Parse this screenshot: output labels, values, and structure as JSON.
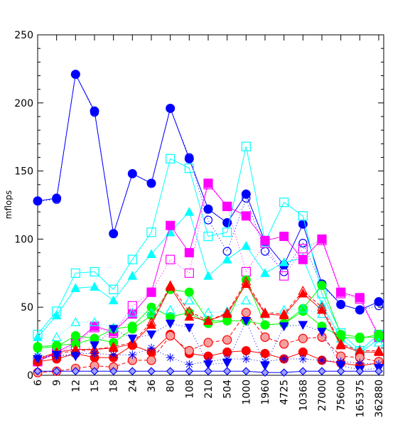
{
  "chart_data": {
    "type": "line",
    "title": "",
    "xlabel": "",
    "ylabel": "mflops",
    "ylim": [
      0,
      250
    ],
    "yticks": [
      "0",
      "50",
      "100",
      "150",
      "200",
      "250"
    ],
    "categories": [
      "6",
      "9",
      "12",
      "15",
      "18",
      "24",
      "36",
      "80",
      "108",
      "210",
      "504",
      "1000",
      "1960",
      "4725",
      "10368",
      "27000",
      "75600",
      "165375",
      "362880"
    ],
    "grid": false,
    "series": [
      {
        "color": "#0000ff",
        "style": "solid",
        "marker": "circle-filled",
        "values": [
          128,
          130,
          221,
          194,
          104,
          148,
          141,
          196,
          159,
          122,
          112,
          133,
          98,
          81,
          111,
          67,
          52,
          48,
          54
        ]
      },
      {
        "color": "#0000ff",
        "style": "dotted",
        "marker": "circle-open",
        "values": [
          128,
          129,
          221,
          193,
          104,
          148,
          141,
          196,
          160,
          114,
          91,
          130,
          91,
          76,
          97,
          66,
          52,
          48,
          51
        ]
      },
      {
        "color": "#00ffff",
        "style": "solid",
        "marker": "square-open",
        "values": [
          30,
          47,
          75,
          76,
          63,
          85,
          105,
          159,
          152,
          102,
          105,
          168,
          98,
          127,
          117,
          60,
          31,
          18,
          30
        ]
      },
      {
        "color": "#00ffff",
        "style": "solid",
        "marker": "triangle-filled",
        "values": [
          28,
          44,
          64,
          65,
          55,
          73,
          89,
          105,
          120,
          73,
          85,
          95,
          75,
          83,
          86,
          52,
          27,
          16,
          27
        ]
      },
      {
        "color": "#ff00ff",
        "style": "solid",
        "marker": "square-filled",
        "values": [
          10,
          17,
          24,
          36,
          32,
          45,
          61,
          110,
          90,
          141,
          124,
          117,
          99,
          102,
          85,
          100,
          61,
          57,
          29
        ]
      },
      {
        "color": "#ff00ff",
        "style": "dotted",
        "marker": "square-open",
        "values": [
          10,
          16,
          22,
          35,
          31,
          51,
          61,
          85,
          75,
          140,
          124,
          76,
          97,
          73,
          93,
          99,
          60,
          56,
          28
        ]
      },
      {
        "color": "#00ff00",
        "style": "solid",
        "marker": "circle-filled",
        "values": [
          20,
          21,
          29,
          27,
          24,
          34,
          44,
          63,
          61,
          40,
          40,
          70,
          37,
          38,
          47,
          36,
          28,
          27,
          30
        ]
      },
      {
        "color": "#00ff00",
        "style": "solid",
        "marker": "circle-filled",
        "values": [
          21,
          22,
          23,
          27,
          34,
          36,
          50,
          43,
          46,
          38,
          40,
          40,
          37,
          38,
          49,
          66,
          30,
          28,
          28
        ]
      },
      {
        "color": "#00ffff",
        "style": "dotted",
        "marker": "triangle-open",
        "values": [
          14,
          28,
          39,
          39,
          35,
          46,
          46,
          48,
          55,
          46,
          47,
          55,
          45,
          48,
          49,
          45,
          22,
          19,
          24
        ]
      },
      {
        "color": "#ff0000",
        "style": "solid",
        "marker": "triangle-filled",
        "values": [
          12,
          17,
          19,
          19,
          20,
          23,
          37,
          65,
          43,
          40,
          45,
          67,
          45,
          44,
          60,
          48,
          22,
          17,
          17
        ]
      },
      {
        "color": "#ff0000",
        "style": "dashed",
        "marker": "triangle-open",
        "values": [
          11,
          16,
          18,
          19,
          21,
          24,
          39,
          66,
          47,
          40,
          46,
          69,
          46,
          45,
          62,
          50,
          23,
          18,
          18
        ]
      },
      {
        "color": "#ff0000",
        "style": "solid",
        "marker": "circle-filled",
        "values": [
          10,
          12,
          16,
          13,
          13,
          22,
          17,
          30,
          16,
          14,
          17,
          18,
          16,
          12,
          17,
          11,
          9,
          7,
          9
        ]
      },
      {
        "color": "#ff0000",
        "style": "dashed",
        "marker": "circle-shaded",
        "values": [
          2,
          3,
          5,
          7,
          6,
          11,
          11,
          29,
          18,
          24,
          26,
          46,
          28,
          23,
          27,
          28,
          14,
          13,
          10
        ]
      },
      {
        "color": "#0000ff",
        "style": "dotted",
        "marker": "triangle-down-filled",
        "values": [
          12,
          15,
          14,
          22,
          34,
          27,
          30,
          38,
          35,
          8,
          9,
          40,
          7,
          36,
          37,
          32,
          7,
          4,
          5
        ]
      },
      {
        "color": "#0000ff",
        "style": "dotted",
        "marker": "asterisk",
        "values": [
          14,
          14,
          16,
          16,
          15,
          15,
          20,
          13,
          8,
          10,
          12,
          12,
          10,
          12,
          12,
          11,
          10,
          9,
          8
        ]
      },
      {
        "color": "#0000ff",
        "style": "solid",
        "marker": "diamond",
        "values": [
          3,
          3,
          3,
          3,
          3,
          3,
          3,
          3,
          3,
          3,
          3,
          3,
          2,
          2,
          3,
          3,
          3,
          3,
          3
        ]
      }
    ]
  }
}
